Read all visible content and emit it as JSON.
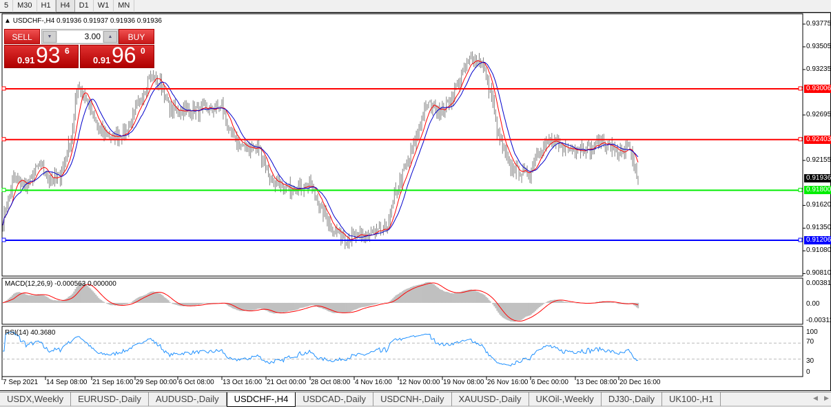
{
  "timeframes": [
    "5",
    "M30",
    "H1",
    "H4",
    "D1",
    "W1",
    "MN"
  ],
  "active_timeframe": "H4",
  "chart": {
    "symbol_line": "USDCHF-,H4  0.91936 0.91937 0.91936 0.91936",
    "trade_panel": {
      "sell_label": "SELL",
      "buy_label": "BUY",
      "lot": "3.00",
      "sell_prefix": "0.91",
      "sell_big": "93",
      "sell_sup": "6",
      "buy_prefix": "0.91",
      "buy_big": "96",
      "buy_sup": "0"
    },
    "price_axis": [
      "0.93775",
      "0.93505",
      "0.93235",
      "0.92695",
      "0.92155",
      "0.91620",
      "0.91350",
      "0.91080",
      "0.90810"
    ],
    "price_axis_values": [
      0.93775,
      0.93505,
      0.93235,
      0.92695,
      0.92155,
      0.9162,
      0.9135,
      0.9108,
      0.9081
    ],
    "hlines": [
      {
        "price": 0.93006,
        "label": "0.93006",
        "color": "#ff0000"
      },
      {
        "price": 0.92403,
        "label": "0.92403",
        "color": "#ff0000"
      },
      {
        "price": 0.918,
        "label": "0.91800",
        "color": "#00ee00"
      },
      {
        "price": 0.91206,
        "label": "0.91206",
        "color": "#0000ff"
      }
    ],
    "current_price": {
      "price": 0.91936,
      "label": "0.91936",
      "color": "#000000"
    },
    "close_path": [
      [
        0,
        0.91444
      ],
      [
        8,
        0.91934
      ],
      [
        18,
        0.91852
      ],
      [
        26,
        0.92098
      ],
      [
        34,
        0.91934
      ],
      [
        42,
        0.91975
      ],
      [
        50,
        0.92425
      ],
      [
        55,
        0.9308
      ],
      [
        62,
        0.92834
      ],
      [
        70,
        0.92507
      ],
      [
        80,
        0.92425
      ],
      [
        90,
        0.92507
      ],
      [
        100,
        0.92834
      ],
      [
        107,
        0.93161
      ],
      [
        115,
        0.9308
      ],
      [
        122,
        0.92752
      ],
      [
        130,
        0.92752
      ],
      [
        140,
        0.92752
      ],
      [
        150,
        0.92752
      ],
      [
        160,
        0.92793
      ],
      [
        167,
        0.92425
      ],
      [
        177,
        0.92303
      ],
      [
        187,
        0.92303
      ],
      [
        195,
        0.91934
      ],
      [
        205,
        0.91812
      ],
      [
        215,
        0.91852
      ],
      [
        225,
        0.91852
      ],
      [
        232,
        0.91607
      ],
      [
        240,
        0.91362
      ],
      [
        250,
        0.91239
      ],
      [
        260,
        0.91239
      ],
      [
        270,
        0.9128
      ],
      [
        280,
        0.91321
      ],
      [
        287,
        0.91771
      ],
      [
        295,
        0.92098
      ],
      [
        302,
        0.92425
      ],
      [
        310,
        0.92834
      ],
      [
        320,
        0.92752
      ],
      [
        327,
        0.92875
      ],
      [
        335,
        0.93161
      ],
      [
        342,
        0.93366
      ],
      [
        350,
        0.93325
      ],
      [
        357,
        0.92916
      ],
      [
        362,
        0.92425
      ],
      [
        370,
        0.92098
      ],
      [
        377,
        0.92016
      ],
      [
        385,
        0.92016
      ],
      [
        392,
        0.92303
      ],
      [
        400,
        0.92384
      ],
      [
        407,
        0.92303
      ],
      [
        415,
        0.92303
      ],
      [
        422,
        0.92303
      ],
      [
        430,
        0.92303
      ],
      [
        437,
        0.92384
      ],
      [
        445,
        0.92303
      ],
      [
        452,
        0.92221
      ],
      [
        457,
        0.92303
      ],
      [
        464,
        0.91918
      ]
    ],
    "ma_colors": {
      "fast": "#ff0000",
      "slow": "#0000cc"
    },
    "candle_color": "#808080"
  },
  "macd": {
    "label": "MACD(12,26,9) -0.000563 0.000000",
    "axis": [
      "0.003811",
      "0.00",
      "-0.003115"
    ],
    "range": [
      -0.003115,
      0.003811
    ],
    "hist_color": "#c0c0c0",
    "signal_color": "#ff0000"
  },
  "rsi": {
    "label": "RSI(14) 40.3680",
    "axis": [
      "100",
      "70",
      "30",
      "0"
    ],
    "levels": [
      70,
      30
    ],
    "line_color": "#1e90ff"
  },
  "time_axis": [
    "7 Sep 2021",
    "14 Sep 08:00",
    "21 Sep 16:00",
    "29 Sep 00:00",
    "6 Oct 08:00",
    "13 Oct 16:00",
    "21 Oct 00:00",
    "28 Oct 08:00",
    "4 Nov 16:00",
    "12 Nov 00:00",
    "19 Nov 08:00",
    "26 Nov 16:00",
    "6 Dec 00:00",
    "13 Dec 08:00",
    "20 Dec 16:00"
  ],
  "tabs": [
    "USDX,Weekly",
    "EURUSD-,Daily",
    "AUDUSD-,Daily",
    "USDCHF-,H4",
    "USDCAD-,Daily",
    "USDCNH-,Daily",
    "XAUUSD-,Daily",
    "UKOil-,Weekly",
    "DJ30-,Daily",
    "UK100-,H1"
  ],
  "active_tab": "USDCHF-,H4"
}
